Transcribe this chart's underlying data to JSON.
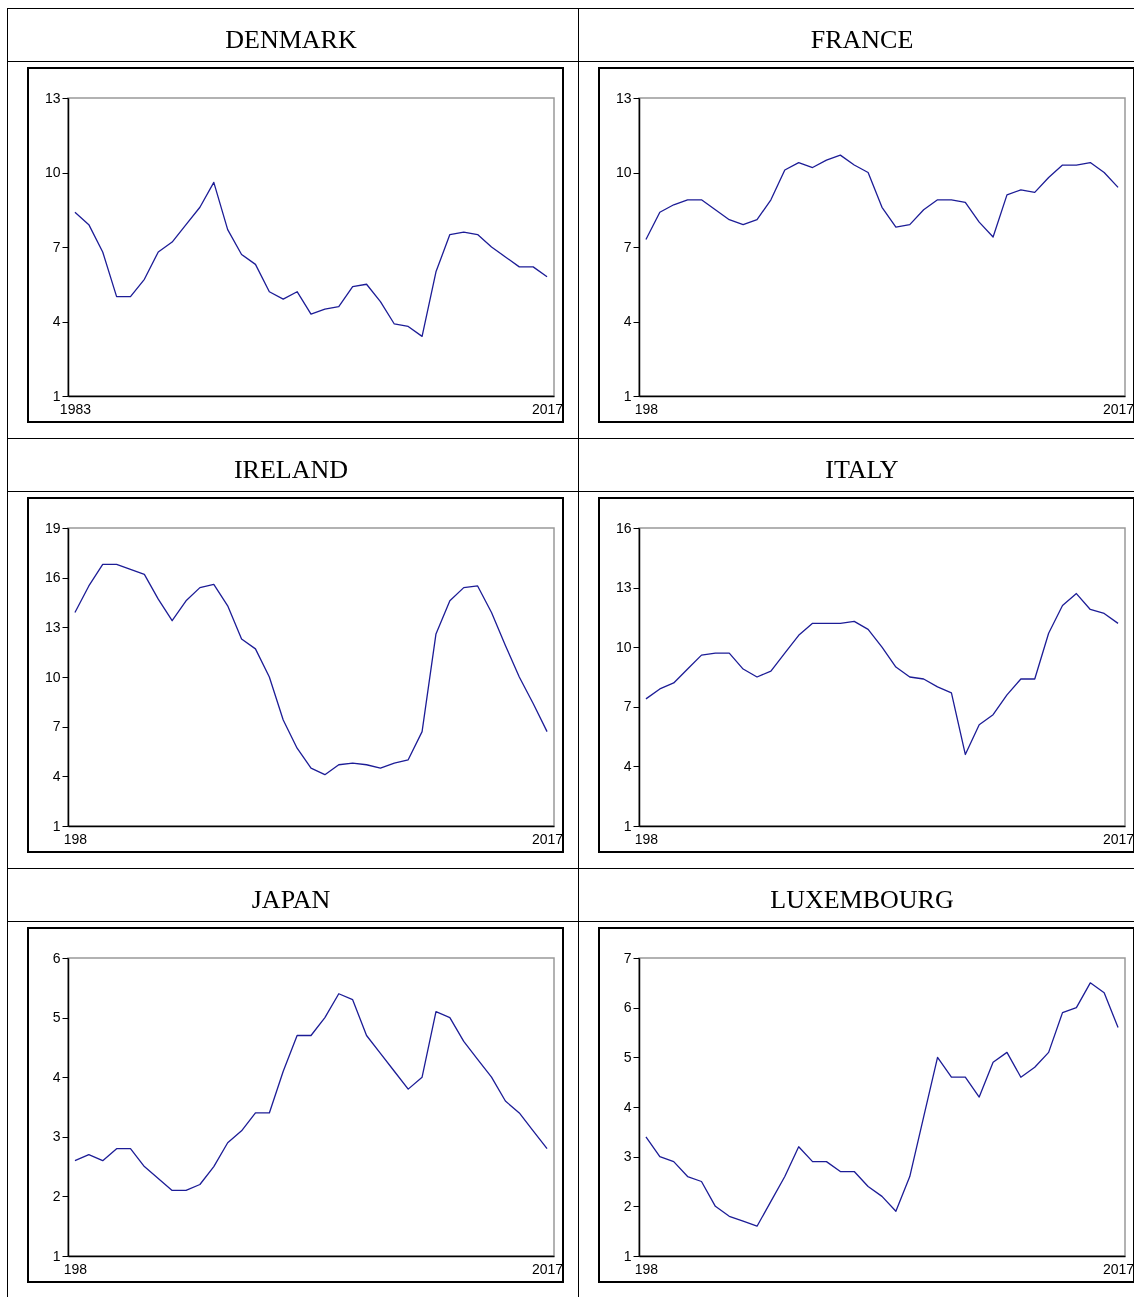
{
  "chart_data": [
    {
      "type": "line",
      "title": "DENMARK",
      "color": "#1c1c96",
      "categories": [
        "1983",
        null,
        null,
        null,
        null,
        null,
        null,
        null,
        null,
        null,
        null,
        null,
        null,
        null,
        null,
        null,
        null,
        null,
        null,
        null,
        null,
        null,
        null,
        null,
        null,
        null,
        null,
        null,
        null,
        null,
        null,
        null,
        null,
        null,
        "2017"
      ],
      "values": [
        8.4,
        7.9,
        6.8,
        5.0,
        5.0,
        5.7,
        6.8,
        7.2,
        7.9,
        8.6,
        9.6,
        7.7,
        6.7,
        6.3,
        5.2,
        4.9,
        5.2,
        4.3,
        4.5,
        4.6,
        5.4,
        5.5,
        4.8,
        3.9,
        3.8,
        3.4,
        6.0,
        7.5,
        7.6,
        7.5,
        7.0,
        6.6,
        6.2,
        6.2,
        5.8
      ],
      "ylim": [
        1,
        13
      ],
      "yticks": [
        1,
        4,
        7,
        10,
        13
      ]
    },
    {
      "type": "line",
      "title": "FRANCE",
      "color": "#1c1c96",
      "categories": [
        "198",
        null,
        null,
        null,
        null,
        null,
        null,
        null,
        null,
        null,
        null,
        null,
        null,
        null,
        null,
        null,
        null,
        null,
        null,
        null,
        null,
        null,
        null,
        null,
        null,
        null,
        null,
        null,
        null,
        null,
        null,
        null,
        null,
        null,
        "2017"
      ],
      "values": [
        7.3,
        8.4,
        8.7,
        8.9,
        8.9,
        8.5,
        8.1,
        7.9,
        8.1,
        8.9,
        10.1,
        10.4,
        10.2,
        10.5,
        10.7,
        10.3,
        10.0,
        8.6,
        7.8,
        7.9,
        8.5,
        8.9,
        8.9,
        8.8,
        8.0,
        7.4,
        9.1,
        9.3,
        9.2,
        9.8,
        10.3,
        10.3,
        10.4,
        10.0,
        9.4
      ],
      "ylim": [
        1,
        13
      ],
      "yticks": [
        1,
        4,
        7,
        10,
        13
      ]
    },
    {
      "type": "line",
      "title": "IRELAND",
      "color": "#1c1c96",
      "categories": [
        "198",
        null,
        null,
        null,
        null,
        null,
        null,
        null,
        null,
        null,
        null,
        null,
        null,
        null,
        null,
        null,
        null,
        null,
        null,
        null,
        null,
        null,
        null,
        null,
        null,
        null,
        null,
        null,
        null,
        null,
        null,
        null,
        null,
        null,
        "2017"
      ],
      "values": [
        13.9,
        15.5,
        16.8,
        16.8,
        16.5,
        16.2,
        14.7,
        13.4,
        14.6,
        15.4,
        15.6,
        14.3,
        12.3,
        11.7,
        10.0,
        7.4,
        5.7,
        4.5,
        4.1,
        4.7,
        4.8,
        4.7,
        4.5,
        4.8,
        5.0,
        6.7,
        12.6,
        14.6,
        15.4,
        15.5,
        13.9,
        11.9,
        10.0,
        8.4,
        6.7
      ],
      "ylim": [
        1,
        19
      ],
      "yticks": [
        1,
        4,
        7,
        10,
        13,
        16,
        19
      ]
    },
    {
      "type": "line",
      "title": "ITALY",
      "color": "#1c1c96",
      "categories": [
        "198",
        null,
        null,
        null,
        null,
        null,
        null,
        null,
        null,
        null,
        null,
        null,
        null,
        null,
        null,
        null,
        null,
        null,
        null,
        null,
        null,
        null,
        null,
        null,
        null,
        null,
        null,
        null,
        null,
        null,
        null,
        null,
        null,
        null,
        "2017"
      ],
      "values": [
        7.4,
        7.9,
        8.2,
        8.9,
        9.6,
        9.7,
        9.7,
        8.9,
        8.5,
        8.8,
        9.7,
        10.6,
        11.2,
        11.2,
        11.2,
        11.3,
        10.9,
        10.0,
        9.0,
        8.5,
        8.4,
        8.0,
        7.7,
        4.6,
        6.1,
        6.6,
        7.6,
        8.4,
        8.4,
        10.7,
        12.1,
        12.7,
        11.9,
        11.7,
        11.2
      ],
      "ylim": [
        1,
        16
      ],
      "yticks": [
        1,
        4,
        7,
        10,
        13,
        16
      ]
    },
    {
      "type": "line",
      "title": "JAPAN",
      "color": "#1c1c96",
      "categories": [
        "198",
        null,
        null,
        null,
        null,
        null,
        null,
        null,
        null,
        null,
        null,
        null,
        null,
        null,
        null,
        null,
        null,
        null,
        null,
        null,
        null,
        null,
        null,
        null,
        null,
        null,
        null,
        null,
        null,
        null,
        null,
        null,
        null,
        null,
        "2017"
      ],
      "values": [
        2.6,
        2.7,
        2.6,
        2.8,
        2.8,
        2.5,
        2.3,
        2.1,
        2.1,
        2.2,
        2.5,
        2.9,
        3.1,
        3.4,
        3.4,
        4.1,
        4.7,
        4.7,
        5.0,
        5.4,
        5.3,
        4.7,
        4.4,
        4.1,
        3.8,
        4.0,
        5.1,
        5.0,
        4.6,
        4.3,
        4.0,
        3.6,
        3.4,
        3.1,
        2.8
      ],
      "ylim": [
        1,
        6
      ],
      "yticks": [
        1,
        2,
        3,
        4,
        5,
        6
      ]
    },
    {
      "type": "line",
      "title": "LUXEMBOURG",
      "color": "#1c1c96",
      "categories": [
        "198",
        null,
        null,
        null,
        null,
        null,
        null,
        null,
        null,
        null,
        null,
        null,
        null,
        null,
        null,
        null,
        null,
        null,
        null,
        null,
        null,
        null,
        null,
        null,
        null,
        null,
        null,
        null,
        null,
        null,
        null,
        null,
        null,
        null,
        "2017"
      ],
      "values": [
        3.4,
        3.0,
        2.9,
        2.6,
        2.5,
        2.0,
        1.8,
        1.7,
        1.6,
        2.1,
        2.6,
        3.2,
        2.9,
        2.9,
        2.7,
        2.7,
        2.4,
        2.2,
        1.9,
        2.6,
        3.8,
        5.0,
        4.6,
        4.6,
        4.2,
        4.9,
        5.1,
        4.6,
        4.8,
        5.1,
        5.9,
        6.0,
        6.5,
        6.3,
        5.6
      ],
      "ylim": [
        1,
        7
      ],
      "yticks": [
        1,
        2,
        3,
        4,
        5,
        6,
        7
      ]
    }
  ]
}
